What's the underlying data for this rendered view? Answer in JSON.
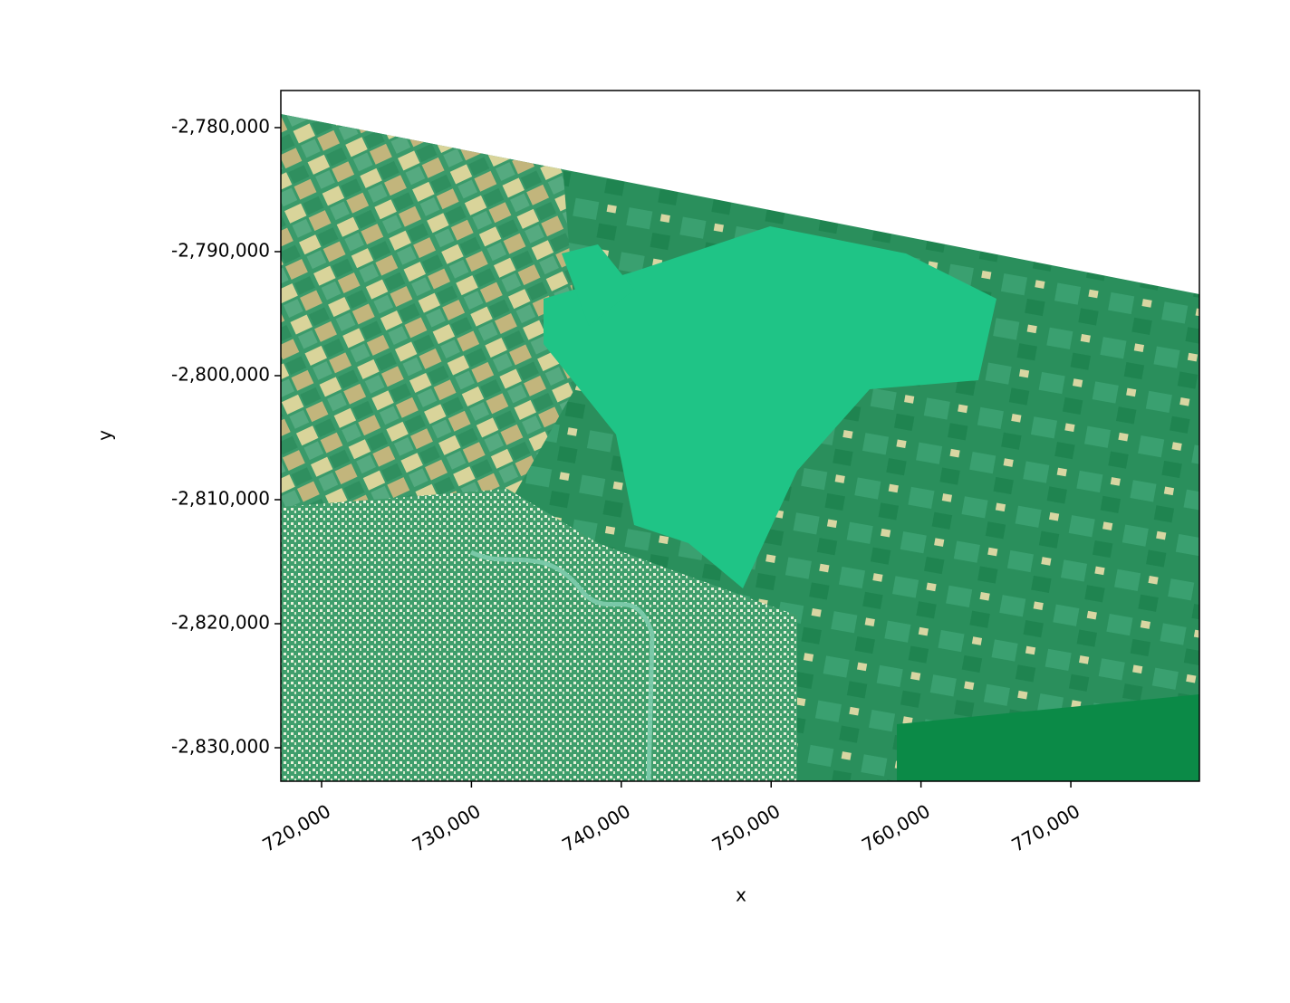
{
  "chart_data": {
    "type": "image",
    "x_label": "x",
    "y_label": "y",
    "xlim": [
      717280,
      778580
    ],
    "ylim": [
      -2832700,
      -2777010
    ],
    "xticks": [
      {
        "value": 720000,
        "label": "720,000"
      },
      {
        "value": 730000,
        "label": "730,000"
      },
      {
        "value": 740000,
        "label": "740,000"
      },
      {
        "value": 750000,
        "label": "750,000"
      },
      {
        "value": 760000,
        "label": "760,000"
      },
      {
        "value": 770000,
        "label": "770,000"
      }
    ],
    "yticks": [
      {
        "value": -2780000,
        "label": "-2,780,000"
      },
      {
        "value": -2790000,
        "label": "-2,790,000"
      },
      {
        "value": -2800000,
        "label": "-2,800,000"
      },
      {
        "value": -2810000,
        "label": "-2,810,000"
      },
      {
        "value": -2820000,
        "label": "-2,820,000"
      },
      {
        "value": -2830000,
        "label": "-2,830,000"
      }
    ]
  }
}
